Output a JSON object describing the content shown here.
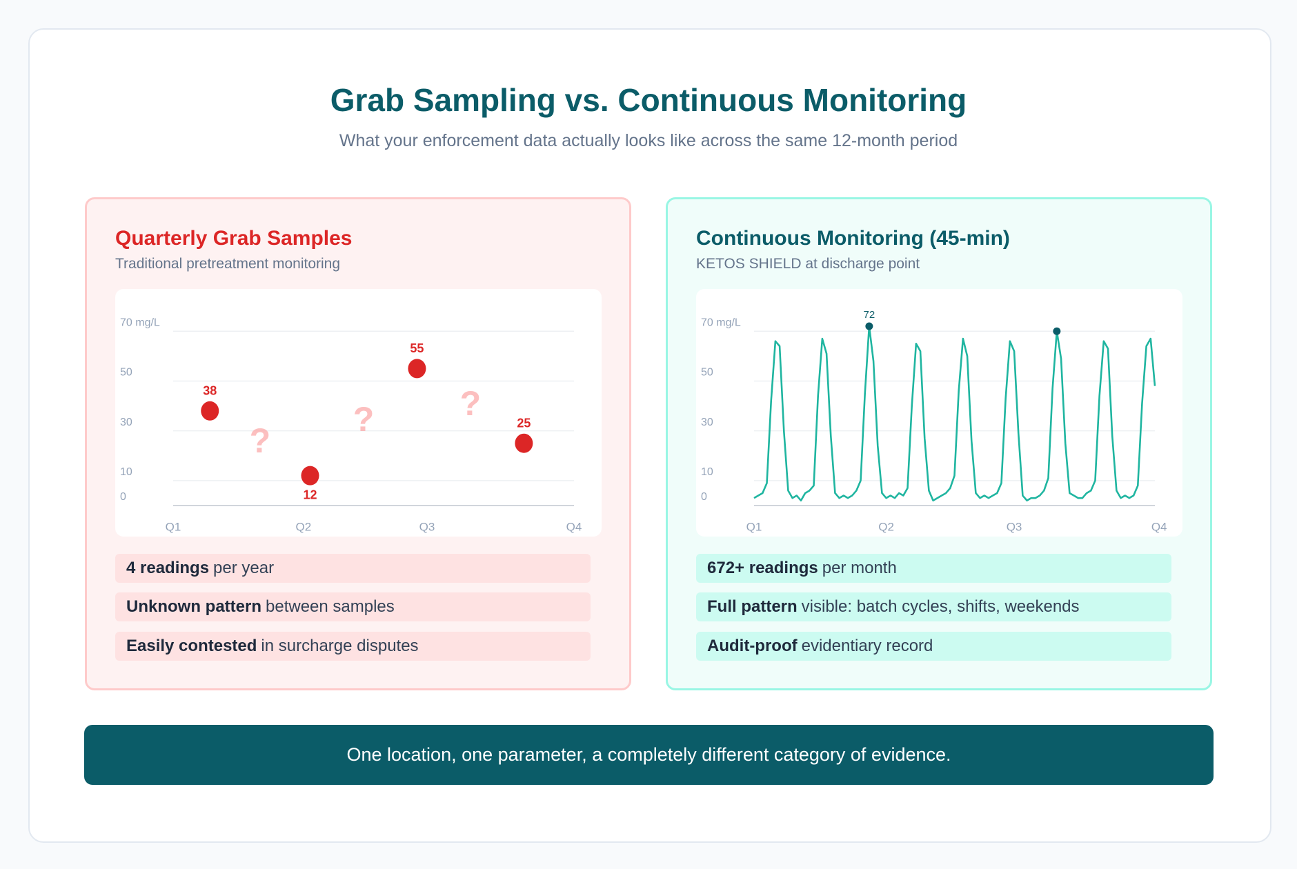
{
  "header": {
    "title": "Grab Sampling vs. Continuous Monitoring",
    "subtitle": "What your enforcement data actually looks like across the same 12-month period"
  },
  "panels": [
    {
      "title": "Quarterly Grab Samples",
      "subtitle": "Traditional pretreatment monitoring",
      "stats": [
        {
          "bold": "4 readings",
          "text": "per year"
        },
        {
          "bold": "Unknown pattern",
          "text": "between samples"
        },
        {
          "bold": "Easily contested",
          "text": "in surcharge disputes"
        }
      ]
    },
    {
      "title": "Continuous Monitoring (45-min)",
      "subtitle": "KETOS SHIELD at discharge point",
      "stats": [
        {
          "bold": "672+ readings",
          "text": "per month"
        },
        {
          "bold": "Full pattern",
          "text": "visible: batch cycles, shifts, weekends"
        },
        {
          "bold": "Audit-proof",
          "text": "evidentiary record"
        }
      ]
    }
  ],
  "chart_data": [
    {
      "type": "scatter",
      "color": "#dc2626",
      "gap_label": "?",
      "gap_color": "#fca5a5",
      "x": [
        1.1,
        4.1,
        7.3,
        10.5
      ],
      "values": [
        38,
        12,
        55,
        25
      ],
      "xlim": [
        0,
        12
      ],
      "xticks": [
        {
          "value": 0,
          "label": "Q1"
        },
        {
          "value": 3.9,
          "label": "Q2"
        },
        {
          "value": 7.6,
          "label": "Q3"
        },
        {
          "value": 12,
          "label": "Q4"
        }
      ],
      "ylim": [
        0,
        72
      ],
      "yticks": [
        0,
        10,
        30,
        50,
        {
          "value": 70,
          "label": "70 mg/L"
        }
      ],
      "grid": true
    },
    {
      "type": "line",
      "color": "#1fb5a0",
      "marker_color": "#0b5c68",
      "values": [
        3,
        4,
        5,
        9,
        42,
        66,
        64,
        30,
        6,
        3,
        4,
        2,
        5,
        6,
        8,
        44,
        67,
        61,
        28,
        5,
        3,
        4,
        3,
        4,
        6,
        10,
        45,
        72,
        58,
        24,
        5,
        3,
        4,
        3,
        5,
        4,
        7,
        40,
        65,
        62,
        27,
        6,
        2,
        3,
        4,
        5,
        7,
        12,
        46,
        67,
        60,
        26,
        5,
        3,
        4,
        3,
        4,
        5,
        9,
        43,
        66,
        62,
        29,
        4,
        2,
        3,
        3,
        4,
        6,
        11,
        47,
        70,
        59,
        25,
        5,
        4,
        3,
        3,
        5,
        6,
        10,
        44,
        66,
        63,
        28,
        6,
        3,
        4,
        3,
        4,
        8,
        41,
        64,
        67,
        48
      ],
      "xlim": [
        0,
        94
      ],
      "xticks": [
        {
          "value": 0,
          "label": "Q1"
        },
        {
          "value": 31,
          "label": "Q2"
        },
        {
          "value": 61,
          "label": "Q3"
        },
        {
          "value": 95,
          "label": "Q4"
        }
      ],
      "ylim": [
        0,
        72
      ],
      "yticks": [
        0,
        10,
        30,
        50,
        {
          "value": 70,
          "label": "70 mg/L"
        }
      ],
      "grid": true
    }
  ],
  "footer": "One location, one parameter, a completely different category of evidence."
}
